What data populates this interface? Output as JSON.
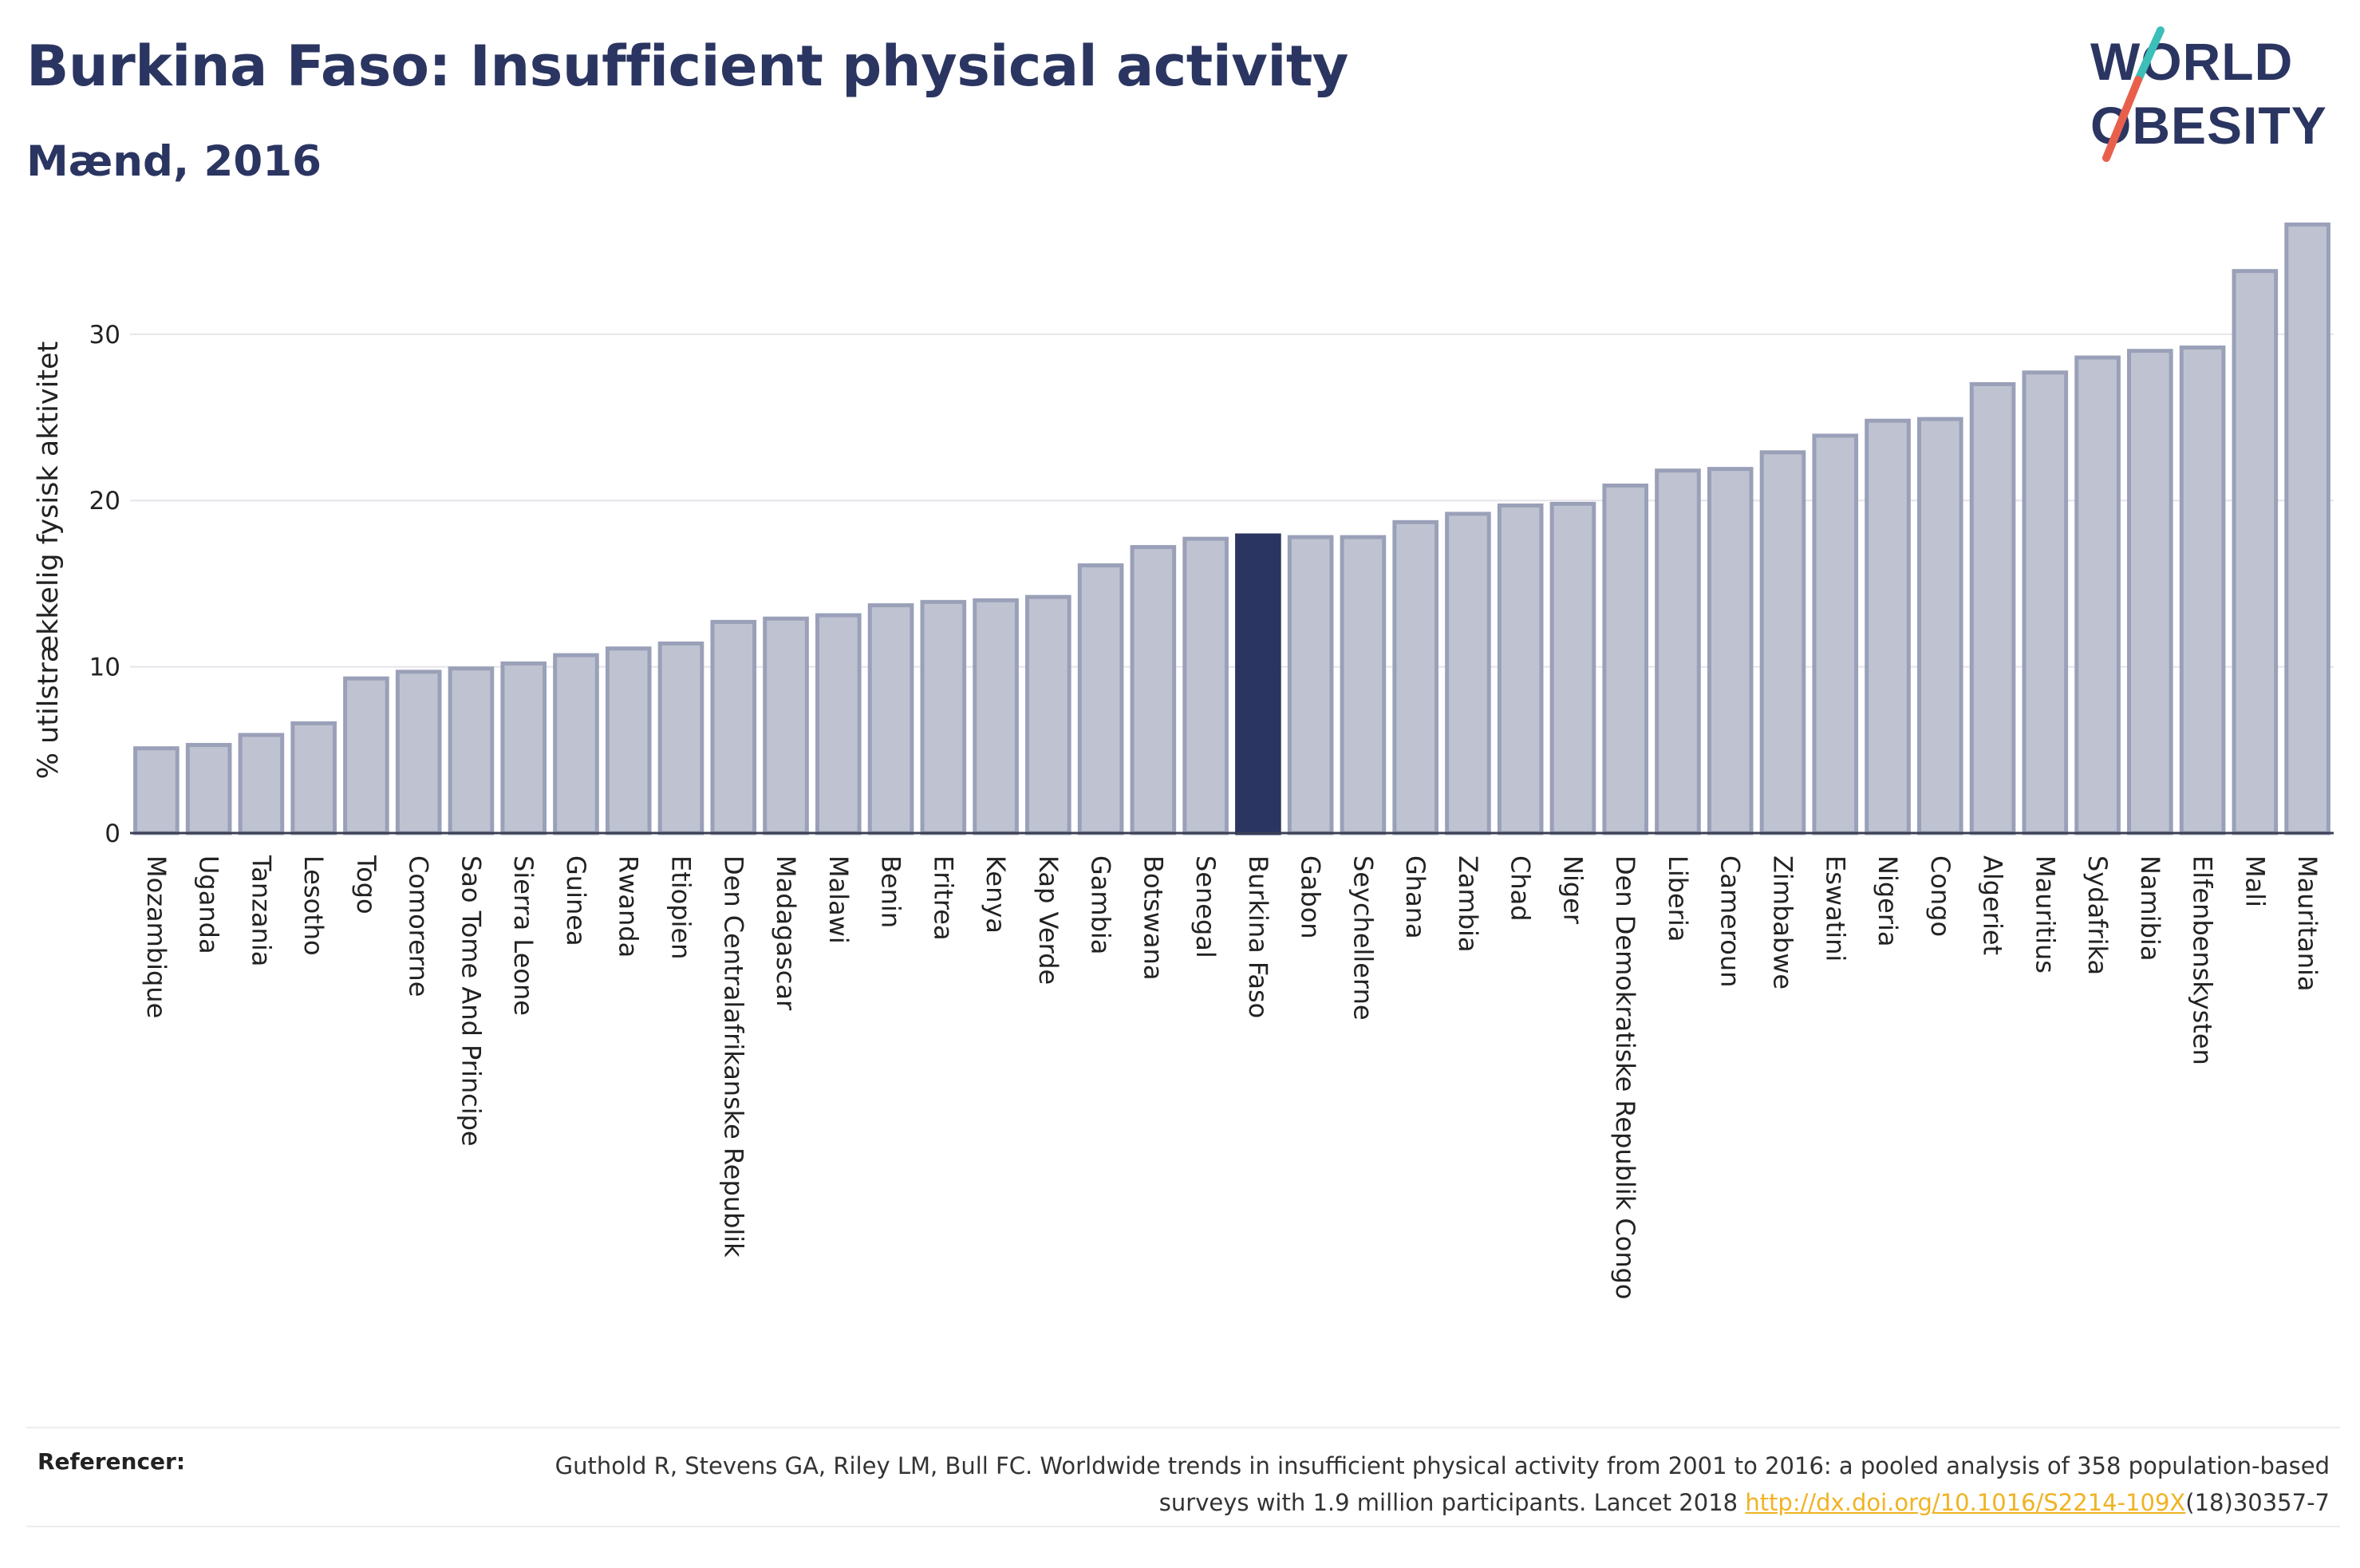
{
  "header": {
    "title": "Burkina Faso: Insufficient physical activity",
    "subtitle": "Mænd, 2016"
  },
  "logo": {
    "line1": "WORLD",
    "line2": "OBESITY",
    "text_color": "#2b3561",
    "slash_colors": [
      "#3bbfb8",
      "#e8604c"
    ]
  },
  "colors": {
    "bar": "#bfc3d1",
    "bar_stroke": "#9aa0b8",
    "highlight": "#2b3561"
  },
  "chart_data": {
    "type": "bar",
    "ylabel": "% utilstrækkelig fysisk aktivitet",
    "xlabel": "",
    "ylim": [
      0,
      37
    ],
    "yticks": [
      0,
      10,
      20,
      30
    ],
    "grid": true,
    "highlight": "Burkina Faso",
    "categories": [
      "Mozambique",
      "Uganda",
      "Tanzania",
      "Lesotho",
      "Togo",
      "Comorerne",
      "Sao Tome And Principe",
      "Sierra Leone",
      "Guinea",
      "Rwanda",
      "Etiopien",
      "Den Centralafrikanske Republik",
      "Madagascar",
      "Malawi",
      "Benin",
      "Eritrea",
      "Kenya",
      "Kap Verde",
      "Gambia",
      "Botswana",
      "Senegal",
      "Burkina Faso",
      "Gabon",
      "Seychellerne",
      "Ghana",
      "Zambia",
      "Chad",
      "Niger",
      "Den Demokratiske Republik Congo",
      "Liberia",
      "Cameroun",
      "Zimbabwe",
      "Eswatini",
      "Nigeria",
      "Congo",
      "Algeriet",
      "Mauritius",
      "Sydafrika",
      "Namibia",
      "Elfenbenskysten",
      "Mali",
      "Mauritania"
    ],
    "values": [
      5.1,
      5.3,
      5.9,
      6.6,
      9.3,
      9.7,
      9.9,
      10.2,
      10.7,
      11.1,
      11.4,
      12.7,
      12.9,
      13.1,
      13.7,
      13.9,
      14.0,
      14.2,
      16.1,
      17.2,
      17.7,
      17.9,
      17.8,
      17.8,
      18.7,
      19.2,
      19.7,
      19.8,
      20.9,
      21.8,
      21.9,
      22.9,
      23.9,
      24.8,
      24.9,
      27.0,
      27.7,
      28.6,
      29.0,
      29.2,
      33.8,
      36.6
    ]
  },
  "references": {
    "label": "Referencer:",
    "text_before": "Guthold R, Stevens GA, Riley LM, Bull FC. Worldwide trends in insufficient physical activity from 2001 to 2016: a pooled analysis of 358 population-based surveys with 1.9 million participants. Lancet 2018 ",
    "link": "http://dx.doi.org/10.1016/S2214-109X",
    "text_after": "(18)30357-7"
  }
}
